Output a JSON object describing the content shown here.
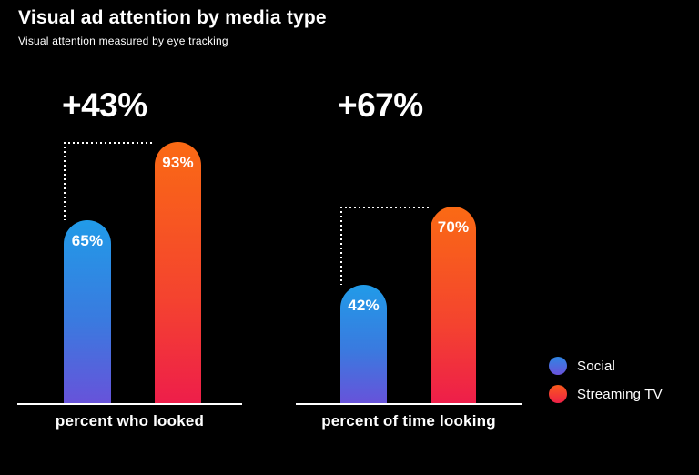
{
  "header": {
    "title": "Visual ad attention by media type",
    "subtitle": "Visual attention measured by eye tracking"
  },
  "chart_data": {
    "type": "bar",
    "title": "Visual ad attention by media type",
    "subtitle": "Visual attention measured by eye tracking",
    "unit": "percent",
    "ylim": [
      0,
      100
    ],
    "grid": false,
    "axes_hidden": true,
    "legend_position": "right-bottom",
    "series_names": [
      "Social",
      "Streaming TV"
    ],
    "groups": [
      {
        "label": "percent who looked",
        "diff_label": "+43%",
        "bars": [
          {
            "series": "Social",
            "value": 65,
            "value_label": "65%"
          },
          {
            "series": "Streaming TV",
            "value": 93,
            "value_label": "93%"
          }
        ]
      },
      {
        "label": "percent of time looking",
        "diff_label": "+67%",
        "bars": [
          {
            "series": "Social",
            "value": 42,
            "value_label": "42%"
          },
          {
            "series": "Streaming TV",
            "value": 70,
            "value_label": "70%"
          }
        ]
      }
    ]
  },
  "legend": {
    "items": [
      {
        "label": "Social",
        "color_top": "#2f86e3",
        "color_bottom": "#6a52db"
      },
      {
        "label": "Streaming TV",
        "color_top": "#fa5a1c",
        "color_bottom": "#ef2147"
      }
    ]
  },
  "colors": {
    "background": "#000000",
    "text": "#ffffff",
    "social_gradient_top": "#219be8",
    "social_gradient_bottom": "#6753da",
    "streaming_gradient_top": "#fa6a14",
    "streaming_gradient_bottom": "#ee1e4a",
    "baseline": "#ffffff",
    "bracket_dots": "#ffffff"
  }
}
